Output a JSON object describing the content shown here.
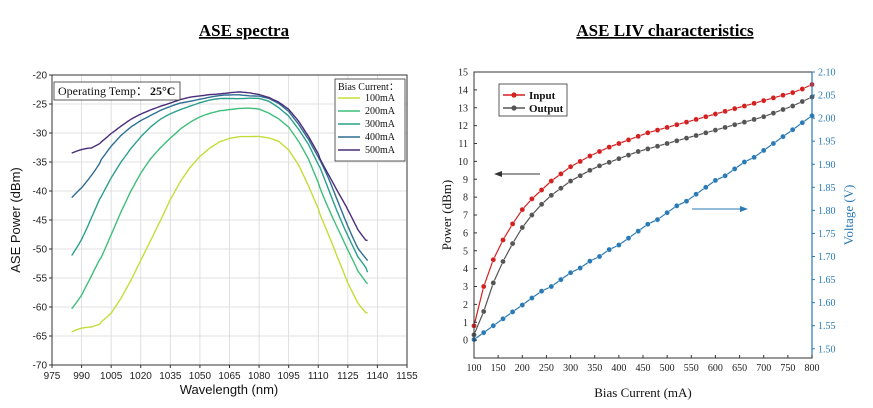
{
  "titles": {
    "left": "ASE spectra",
    "right": "ASE LIV characteristics"
  },
  "chart_data": [
    {
      "type": "line",
      "title": "ASE spectra",
      "xlabel": "Wavelength (nm)",
      "ylabel": "ASE Power (dBm)",
      "xlim": [
        975,
        1155
      ],
      "ylim": [
        -70,
        -20
      ],
      "xticks": [
        "975",
        "990",
        "1005",
        "1020",
        "1035",
        "1050",
        "1065",
        "1080",
        "1095",
        "1110",
        "1125",
        "1140",
        "1155"
      ],
      "yticks": [
        "-20",
        "-25",
        "-30",
        "-35",
        "-40",
        "-45",
        "-50",
        "-55",
        "-60",
        "-65",
        "-70"
      ],
      "grid": true,
      "annotation": {
        "label": "Operating Temp：",
        "value": "25°C"
      },
      "legend": {
        "title": "Bias Current：",
        "position": "top-right"
      },
      "x": [
        985,
        990,
        995,
        1000,
        1005,
        1010,
        1015,
        1020,
        1025,
        1030,
        1035,
        1040,
        1045,
        1050,
        1055,
        1060,
        1065,
        1070,
        1075,
        1080,
        1085,
        1090,
        1095,
        1100,
        1105,
        1110,
        1115,
        1120,
        1125,
        1130,
        1135
      ],
      "series": [
        {
          "name": "100mA",
          "color": "#c5dd3a",
          "values": [
            -64.5,
            -64.0,
            -63.5,
            -62.5,
            -61.0,
            -58.5,
            -55.5,
            -52.0,
            -48.5,
            -45.0,
            -41.5,
            -38.5,
            -36.0,
            -34.0,
            -32.5,
            -31.5,
            -31.0,
            -30.7,
            -30.6,
            -30.5,
            -30.8,
            -31.5,
            -33.0,
            -35.5,
            -39.0,
            -43.0,
            -47.5,
            -52.0,
            -56.0,
            -59.0,
            -61.0
          ]
        },
        {
          "name": "200mA",
          "color": "#3fbe7a",
          "values": [
            -60.0,
            -58.0,
            -55.0,
            -51.5,
            -47.5,
            -43.5,
            -40.0,
            -37.0,
            -34.5,
            -32.5,
            -30.8,
            -29.3,
            -28.2,
            -27.3,
            -26.6,
            -26.1,
            -25.9,
            -25.8,
            -25.8,
            -25.9,
            -26.5,
            -27.5,
            -29.0,
            -31.5,
            -34.5,
            -38.5,
            -42.5,
            -46.5,
            -50.5,
            -54.0,
            -56.0
          ]
        },
        {
          "name": "300mA",
          "color": "#2aa08c",
          "values": [
            -51.0,
            -48.0,
            -44.5,
            -41.0,
            -37.8,
            -35.0,
            -32.6,
            -30.6,
            -29.0,
            -27.7,
            -26.7,
            -25.9,
            -25.3,
            -24.8,
            -24.4,
            -24.1,
            -24.0,
            -24.0,
            -24.0,
            -24.1,
            -24.6,
            -25.6,
            -27.0,
            -29.3,
            -32.0,
            -35.5,
            -39.5,
            -43.5,
            -47.5,
            -51.5,
            -54.0
          ]
        },
        {
          "name": "400mA",
          "color": "#2f6e94",
          "values": [
            -41.5,
            -39.5,
            -37.0,
            -34.5,
            -32.3,
            -30.5,
            -29.0,
            -27.8,
            -26.9,
            -26.1,
            -25.5,
            -24.9,
            -24.5,
            -24.1,
            -23.8,
            -23.6,
            -23.5,
            -23.4,
            -23.5,
            -23.6,
            -24.1,
            -25.0,
            -26.3,
            -28.4,
            -31.0,
            -34.2,
            -38.0,
            -42.0,
            -45.8,
            -49.5,
            -52.0
          ]
        },
        {
          "name": "500mA",
          "color": "#4b2d7a",
          "values": [
            -33.5,
            -33.2,
            -32.8,
            -31.5,
            -30.0,
            -28.8,
            -27.7,
            -26.8,
            -26.0,
            -25.3,
            -24.8,
            -24.3,
            -23.9,
            -23.6,
            -23.3,
            -23.2,
            -23.1,
            -23.0,
            -23.1,
            -23.3,
            -23.8,
            -24.7,
            -26.0,
            -28.0,
            -30.5,
            -33.5,
            -37.0,
            -40.5,
            -43.5,
            -46.5,
            -48.5
          ]
        }
      ]
    },
    {
      "type": "line",
      "title": "ASE LIV characteristics",
      "xlabel": "Bias Current (mA)",
      "ylabel": "Power (dBm)",
      "y2label": "Voltage (V)",
      "xlim": [
        100,
        800
      ],
      "ylim": [
        -1,
        15
      ],
      "y2lim": [
        1.48,
        2.1
      ],
      "xticks": [
        "100",
        "150",
        "200",
        "250",
        "300",
        "350",
        "400",
        "450",
        "500",
        "550",
        "600",
        "650",
        "700",
        "750",
        "800"
      ],
      "yticks": [
        "0",
        "1",
        "2",
        "3",
        "4",
        "5",
        "6",
        "7",
        "8",
        "9",
        "10",
        "11",
        "12",
        "13",
        "14",
        "15"
      ],
      "y2ticks": [
        "1.50",
        "1.55",
        "1.60",
        "1.65",
        "1.70",
        "1.75",
        "1.80",
        "1.85",
        "1.90",
        "1.95",
        "2.00",
        "2.05",
        "2.10"
      ],
      "grid": false,
      "legend": {
        "position": "top-left"
      },
      "x": [
        100,
        120,
        140,
        160,
        180,
        200,
        220,
        240,
        260,
        280,
        300,
        320,
        340,
        360,
        380,
        400,
        420,
        440,
        460,
        480,
        500,
        520,
        540,
        560,
        580,
        600,
        620,
        640,
        660,
        680,
        700,
        720,
        740,
        760,
        780,
        800
      ],
      "series": [
        {
          "name": "Input",
          "color": "#d42020",
          "axis": "left",
          "values": [
            0.8,
            3.0,
            4.5,
            5.6,
            6.5,
            7.3,
            7.9,
            8.4,
            8.9,
            9.3,
            9.7,
            10.0,
            10.3,
            10.55,
            10.8,
            11.0,
            11.2,
            11.4,
            11.6,
            11.75,
            11.9,
            12.05,
            12.2,
            12.35,
            12.5,
            12.65,
            12.8,
            12.95,
            13.1,
            13.25,
            13.4,
            13.55,
            13.7,
            13.85,
            14.05,
            14.3
          ]
        },
        {
          "name": "Output",
          "color": "#555555",
          "axis": "left",
          "values": [
            0.3,
            1.6,
            3.2,
            4.4,
            5.4,
            6.3,
            7.0,
            7.6,
            8.1,
            8.5,
            8.9,
            9.2,
            9.5,
            9.75,
            9.95,
            10.15,
            10.35,
            10.55,
            10.7,
            10.85,
            11.0,
            11.15,
            11.3,
            11.45,
            11.6,
            11.75,
            11.9,
            12.05,
            12.2,
            12.35,
            12.5,
            12.7,
            12.9,
            13.1,
            13.35,
            13.6
          ]
        },
        {
          "name": "",
          "color": "#2a7ab5",
          "axis": "right",
          "values": [
            1.52,
            1.535,
            1.55,
            1.565,
            1.58,
            1.595,
            1.61,
            1.625,
            1.635,
            1.65,
            1.665,
            1.675,
            1.69,
            1.7,
            1.715,
            1.725,
            1.74,
            1.755,
            1.77,
            1.78,
            1.795,
            1.81,
            1.82,
            1.835,
            1.85,
            1.865,
            1.875,
            1.89,
            1.905,
            1.915,
            1.93,
            1.945,
            1.96,
            1.975,
            1.99,
            2.005
          ]
        }
      ]
    }
  ]
}
